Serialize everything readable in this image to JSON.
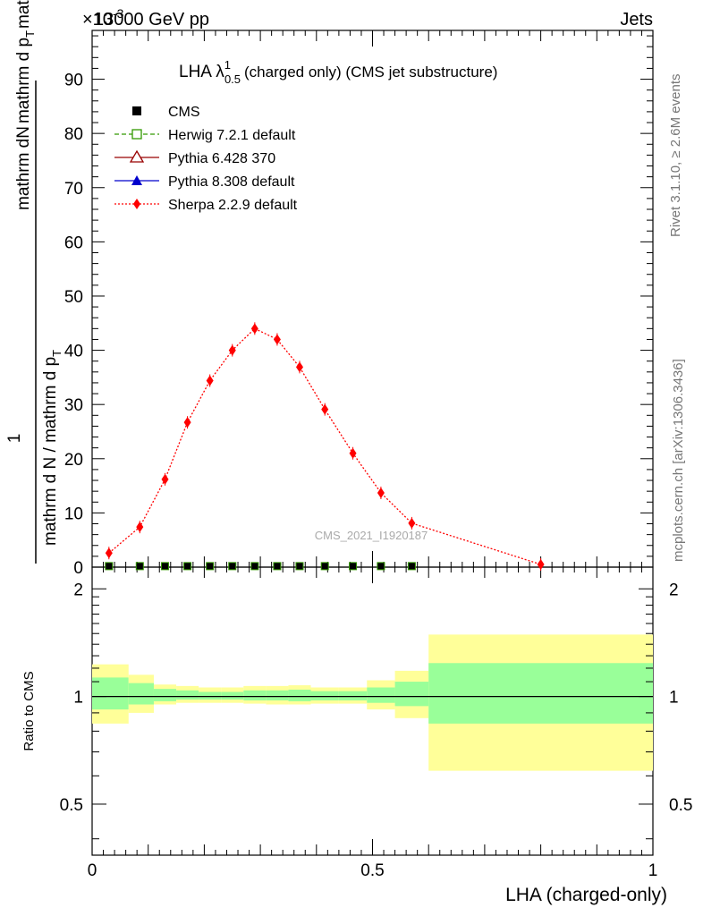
{
  "header": {
    "left": "13000 GeV pp",
    "right": "Jets",
    "exponent": "×10",
    "exponent_power": "-3"
  },
  "title": {
    "main": "LHA λ",
    "sup": "1",
    "sub": "0.5",
    "rest": "(charged only) (CMS jet substructure)"
  },
  "y_label": {
    "numerator_top": "mathrm d",
    "numerator_n": "N",
    "denominator_left": "mathrm d p",
    "denominator_t": "T",
    "denominator_right": "mathrm d lambda",
    "one": "1",
    "bottom": "mathrm d N / mathrm d p",
    "bottom_t": "T"
  },
  "side_text": {
    "rivet": "Rivet 3.1.10, ≥ 2.6M events",
    "mcplots": "mcplots.cern.ch [arXiv:1306.3436]"
  },
  "watermark": "CMS_2021_I1920187",
  "ratio_label": "Ratio to CMS",
  "x_label": "LHA (charged-only)",
  "legend": [
    {
      "label": "CMS",
      "color": "#000000",
      "marker": "square"
    },
    {
      "label": "Herwig 7.2.1 default",
      "color": "#339900",
      "marker": "open-square"
    },
    {
      "label": "Pythia 6.428 370",
      "color": "#990000",
      "marker": "open-triangle"
    },
    {
      "label": "Pythia 8.308 default",
      "color": "#0000cc",
      "marker": "triangle"
    },
    {
      "label": "Sherpa 2.2.9 default",
      "color": "#ff0000",
      "marker": "diamond"
    }
  ],
  "chart_data": [
    {
      "type": "line",
      "panel": "main",
      "title": "LHA λ^1_0.5 (charged only) (CMS jet substructure)",
      "xlabel": "LHA (charged-only)",
      "ylabel": "1/(dN/dpT) d²N/(dpT dλ)",
      "xlim": [
        0,
        1
      ],
      "ylim": [
        0,
        99
      ],
      "y_scale_note": "×10^-3",
      "y_ticks": [
        "0",
        "10",
        "20",
        "30",
        "40",
        "50",
        "60",
        "70",
        "80",
        "90"
      ],
      "y_tick_values": [
        0,
        10,
        20,
        30,
        40,
        50,
        60,
        70,
        80,
        90
      ],
      "x_ticks": [
        "0",
        "0.5",
        "1"
      ],
      "x_tick_values": [
        0,
        0.5,
        1
      ],
      "bin_edges": [
        0,
        0.065,
        0.11,
        0.15,
        0.19,
        0.23,
        0.27,
        0.31,
        0.35,
        0.39,
        0.44,
        0.49,
        0.54,
        0.6,
        1.0
      ],
      "series": [
        {
          "name": "Sherpa 2.2.9 default",
          "x": [
            0.03,
            0.085,
            0.13,
            0.17,
            0.21,
            0.25,
            0.29,
            0.33,
            0.37,
            0.415,
            0.465,
            0.515,
            0.57,
            0.8
          ],
          "y": [
            2.6,
            7.4,
            16.2,
            26.7,
            34.4,
            40.0,
            44.0,
            42.0,
            36.9,
            29.1,
            21.0,
            13.7,
            8.1,
            0.5
          ]
        },
        {
          "name": "CMS",
          "x": [
            0.03,
            0.085,
            0.13,
            0.17,
            0.21,
            0.25,
            0.29,
            0.33,
            0.37,
            0.415,
            0.465,
            0.515,
            0.57
          ],
          "y": [
            0.02,
            0.02,
            0.02,
            0.02,
            0.02,
            0.02,
            0.02,
            0.02,
            0.02,
            0.02,
            0.02,
            0.02,
            0.02
          ]
        }
      ]
    },
    {
      "type": "area",
      "panel": "ratio",
      "ylabel": "Ratio to CMS",
      "xlim": [
        0,
        1
      ],
      "ylim": [
        0.36,
        2.3
      ],
      "y_scale": "log",
      "y_ticks": [
        "0.5",
        "1",
        "2"
      ],
      "y_tick_values": [
        0.5,
        1,
        2
      ],
      "reference_line": 1,
      "bins": [
        {
          "lo": 0.0,
          "hi": 0.065,
          "outer": [
            0.84,
            1.23
          ],
          "inner": [
            0.92,
            1.13
          ]
        },
        {
          "lo": 0.065,
          "hi": 0.11,
          "outer": [
            0.9,
            1.15
          ],
          "inner": [
            0.95,
            1.09
          ]
        },
        {
          "lo": 0.11,
          "hi": 0.15,
          "outer": [
            0.95,
            1.08
          ],
          "inner": [
            0.97,
            1.05
          ]
        },
        {
          "lo": 0.15,
          "hi": 0.19,
          "outer": [
            0.96,
            1.07
          ],
          "inner": [
            0.98,
            1.04
          ]
        },
        {
          "lo": 0.19,
          "hi": 0.23,
          "outer": [
            0.96,
            1.06
          ],
          "inner": [
            0.98,
            1.03
          ]
        },
        {
          "lo": 0.23,
          "hi": 0.27,
          "outer": [
            0.96,
            1.06
          ],
          "inner": [
            0.98,
            1.03
          ]
        },
        {
          "lo": 0.27,
          "hi": 0.31,
          "outer": [
            0.955,
            1.07
          ],
          "inner": [
            0.975,
            1.04
          ]
        },
        {
          "lo": 0.31,
          "hi": 0.35,
          "outer": [
            0.95,
            1.07
          ],
          "inner": [
            0.975,
            1.04
          ]
        },
        {
          "lo": 0.35,
          "hi": 0.39,
          "outer": [
            0.95,
            1.075
          ],
          "inner": [
            0.97,
            1.045
          ]
        },
        {
          "lo": 0.39,
          "hi": 0.44,
          "outer": [
            0.955,
            1.06
          ],
          "inner": [
            0.975,
            1.035
          ]
        },
        {
          "lo": 0.44,
          "hi": 0.49,
          "outer": [
            0.955,
            1.06
          ],
          "inner": [
            0.975,
            1.035
          ]
        },
        {
          "lo": 0.49,
          "hi": 0.54,
          "outer": [
            0.92,
            1.11
          ],
          "inner": [
            0.96,
            1.06
          ]
        },
        {
          "lo": 0.54,
          "hi": 0.6,
          "outer": [
            0.87,
            1.18
          ],
          "inner": [
            0.94,
            1.1
          ]
        },
        {
          "lo": 0.6,
          "hi": 1.0,
          "outer": [
            0.62,
            1.49
          ],
          "inner": [
            0.84,
            1.24
          ]
        }
      ]
    }
  ]
}
